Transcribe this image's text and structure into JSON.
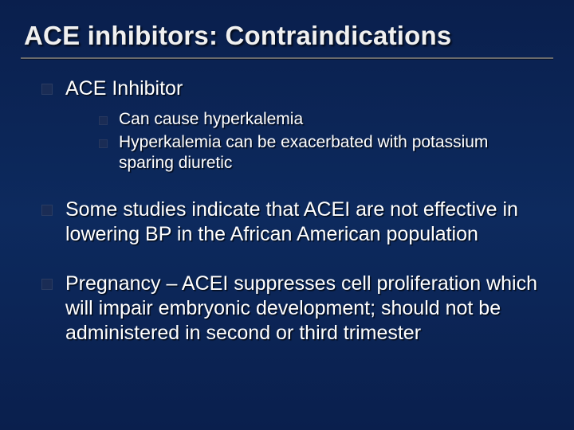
{
  "colors": {
    "background_top": "#0a1f4d",
    "background_mid": "#0d2a5e",
    "text": "#ffffff",
    "title_text": "#f0f0f0",
    "underline": "#6a6a6a",
    "bullet_fill": "#1a2c55"
  },
  "typography": {
    "font_family": "Arial",
    "title_fontsize_pt": 25,
    "l1_fontsize_pt": 19,
    "l2_fontsize_pt": 16,
    "title_weight": "bold"
  },
  "slide": {
    "title": "ACE inhibitors: Contraindications",
    "bullets": [
      {
        "text": "ACE Inhibitor",
        "children": [
          {
            "text": "Can cause hyperkalemia"
          },
          {
            "text": "Hyperkalemia can be exacerbated with potassium sparing diuretic"
          }
        ]
      },
      {
        "text": "Some studies indicate that ACEI are not effective in lowering BP in the African American population"
      },
      {
        "text": "Pregnancy – ACEI suppresses cell proliferation which will impair embryonic development;  should not be administered in second or third trimester"
      }
    ]
  }
}
